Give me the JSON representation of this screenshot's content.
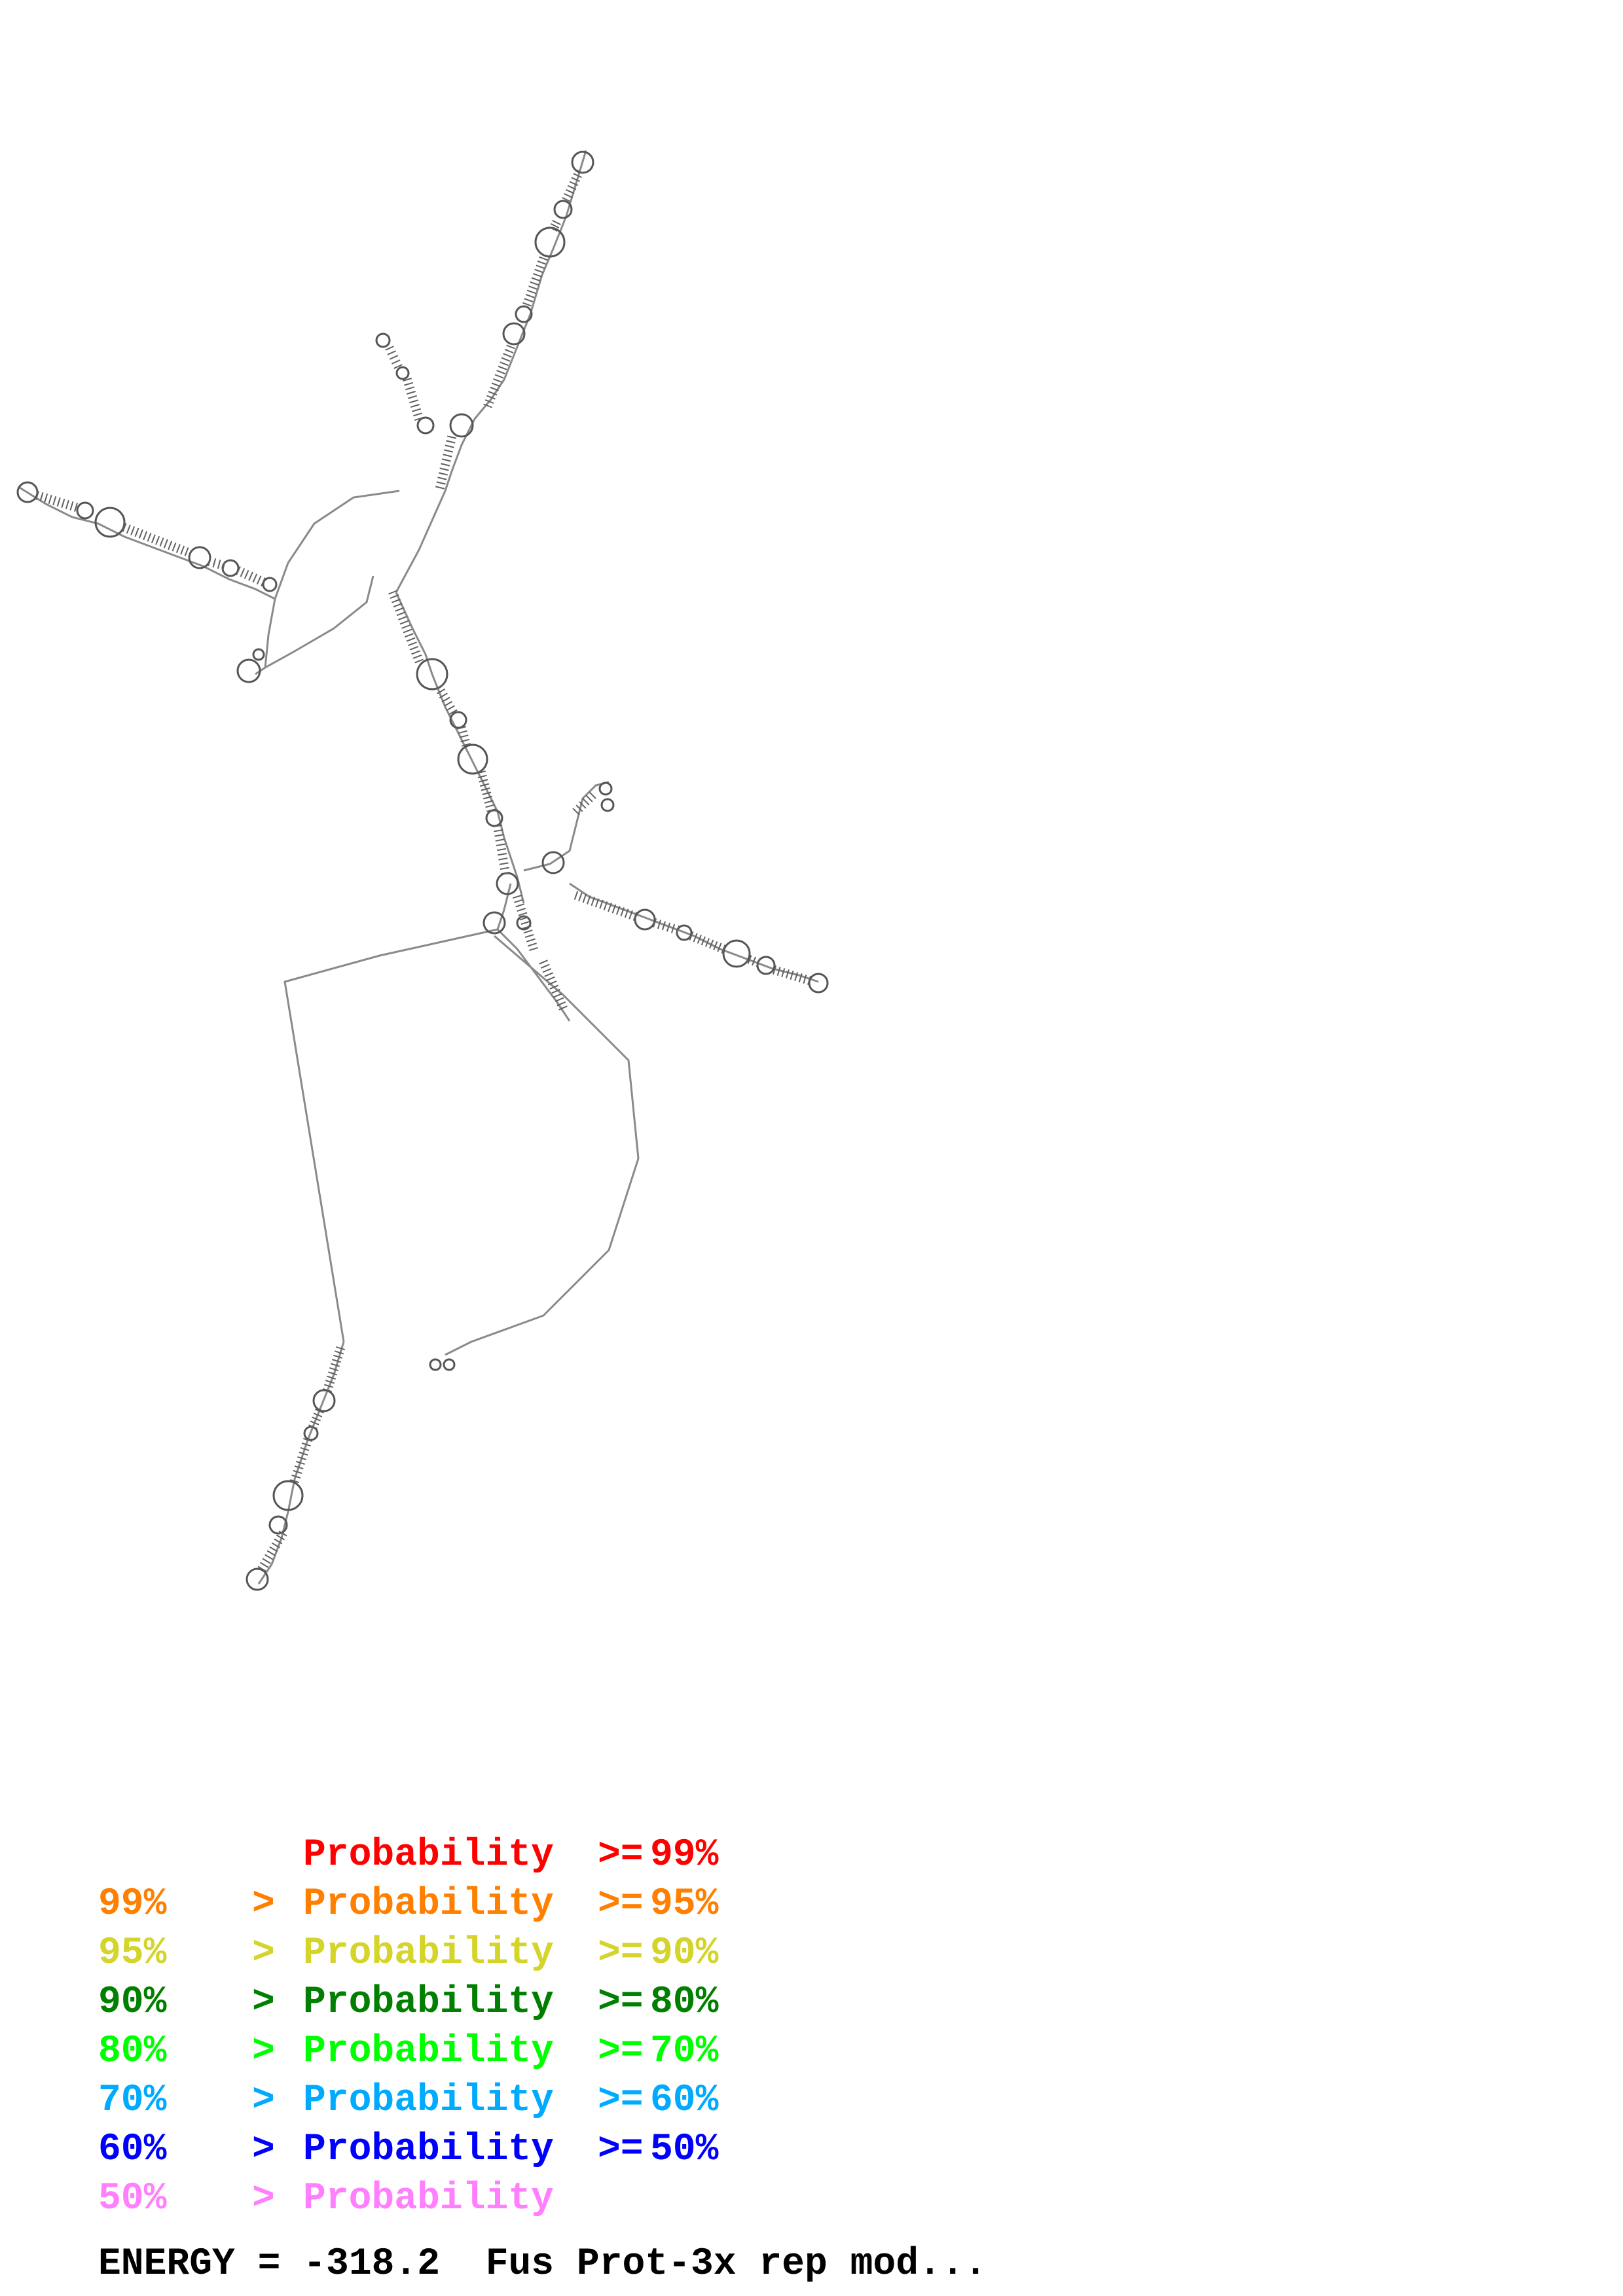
{
  "legend": {
    "rows": [
      {
        "lower": "",
        "op": "",
        "name": "Probability",
        "ge": ">=",
        "upper": "99%",
        "color": "#ff0000"
      },
      {
        "lower": "99%",
        "op": ">",
        "name": "Probability",
        "ge": ">=",
        "upper": "95%",
        "color": "#ff7f00"
      },
      {
        "lower": "95%",
        "op": ">",
        "name": "Probability",
        "ge": ">=",
        "upper": "90%",
        "color": "#d4d42a"
      },
      {
        "lower": "90%",
        "op": ">",
        "name": "Probability",
        "ge": ">=",
        "upper": "80%",
        "color": "#007f00"
      },
      {
        "lower": "80%",
        "op": ">",
        "name": "Probability",
        "ge": ">=",
        "upper": "70%",
        "color": "#00ff00"
      },
      {
        "lower": "70%",
        "op": ">",
        "name": "Probability",
        "ge": ">=",
        "upper": "60%",
        "color": "#00aaff"
      },
      {
        "lower": "60%",
        "op": ">",
        "name": "Probability",
        "ge": ">=",
        "upper": "50%",
        "color": "#0000ff"
      },
      {
        "lower": "50%",
        "op": ">",
        "name": "Probability",
        "ge": "",
        "upper": "",
        "color": "#ff7fff"
      }
    ]
  },
  "footer": {
    "energy_label": "ENERGY = -318.2  Fus Prot-3x rep mod..."
  },
  "colors": {
    "backbone": "#8a8a8a",
    "base_pair": "#606060",
    "background": "#ffffff"
  }
}
